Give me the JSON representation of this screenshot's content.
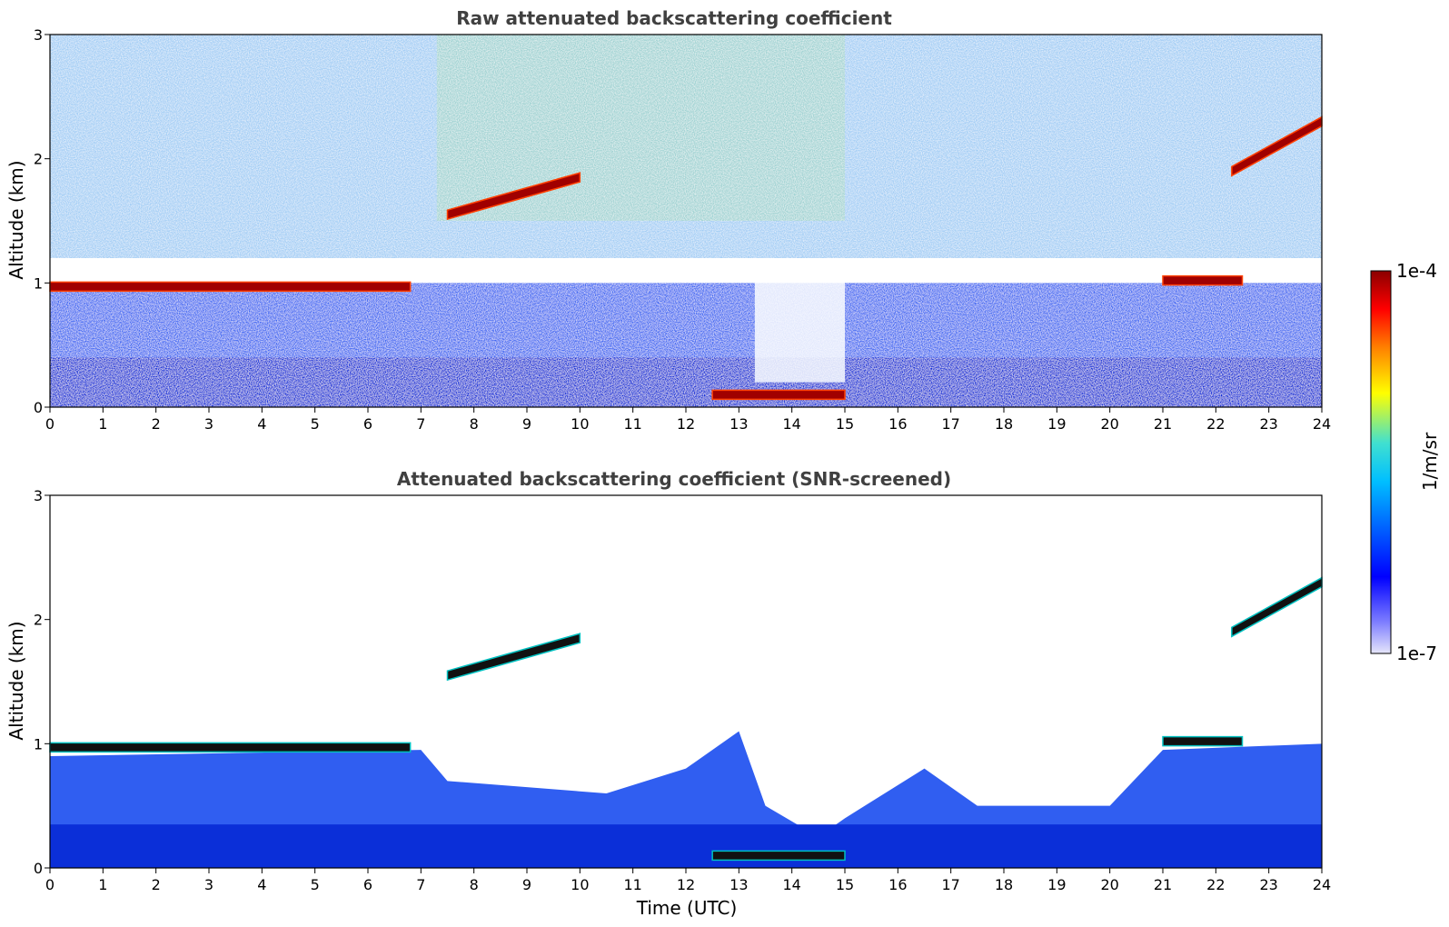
{
  "chart_data": [
    {
      "type": "heatmap",
      "title": "Raw attenuated backscattering coefficient",
      "xlabel": "",
      "ylabel": "Altitude (km)",
      "xlim": [
        0,
        24
      ],
      "ylim": [
        0,
        3
      ],
      "xticks": [
        "0",
        "1",
        "2",
        "3",
        "4",
        "5",
        "6",
        "7",
        "8",
        "9",
        "10",
        "11",
        "12",
        "13",
        "14",
        "15",
        "16",
        "17",
        "18",
        "19",
        "20",
        "21",
        "22",
        "23",
        "24"
      ],
      "yticks": [
        "0",
        "1",
        "2",
        "3"
      ],
      "features": [
        {
          "name": "low cloud layer",
          "x_range": [
            0,
            6.8
          ],
          "altitude_km": 0.97
        },
        {
          "name": "rising cloud",
          "x_range": [
            7.5,
            10.0
          ],
          "altitude_km": [
            1.55,
            1.85
          ]
        },
        {
          "name": "near-surface layer",
          "x_range": [
            12.5,
            15.0
          ],
          "altitude_km": 0.1
        },
        {
          "name": "low cloud layer",
          "x_range": [
            21.0,
            22.5
          ],
          "altitude_km": 1.02
        },
        {
          "name": "elevated cloud",
          "x_range": [
            22.3,
            24.0
          ],
          "altitude_km": [
            1.9,
            2.3
          ]
        }
      ]
    },
    {
      "type": "heatmap",
      "title": "Attenuated backscattering coefficient (SNR-screened)",
      "xlabel": "Time (UTC)",
      "ylabel": "Altitude (km)",
      "xlim": [
        0,
        24
      ],
      "ylim": [
        0,
        3
      ],
      "xticks": [
        "0",
        "1",
        "2",
        "3",
        "4",
        "5",
        "6",
        "7",
        "8",
        "9",
        "10",
        "11",
        "12",
        "13",
        "14",
        "15",
        "16",
        "17",
        "18",
        "19",
        "20",
        "21",
        "22",
        "23",
        "24"
      ],
      "yticks": [
        "0",
        "1",
        "2",
        "3"
      ],
      "features": [
        {
          "name": "low cloud layer",
          "x_range": [
            0,
            6.8
          ],
          "altitude_km": 0.97
        },
        {
          "name": "rising cloud",
          "x_range": [
            7.5,
            10.0
          ],
          "altitude_km": [
            1.55,
            1.85
          ]
        },
        {
          "name": "near-surface layer",
          "x_range": [
            12.5,
            15.0
          ],
          "altitude_km": 0.1
        },
        {
          "name": "low cloud layer",
          "x_range": [
            21.0,
            22.5
          ],
          "altitude_km": 1.02
        },
        {
          "name": "elevated cloud",
          "x_range": [
            22.3,
            24.0
          ],
          "altitude_km": [
            1.9,
            2.3
          ]
        }
      ]
    }
  ],
  "colorbar": {
    "label": "1/m/sr",
    "max_label": "1e-4",
    "min_label": "1e-7",
    "colormap": [
      "#e6e6fa",
      "#0000ff",
      "#00bfff",
      "#40e0d0",
      "#ffff00",
      "#ff8000",
      "#ff0000",
      "#8b0000"
    ]
  }
}
